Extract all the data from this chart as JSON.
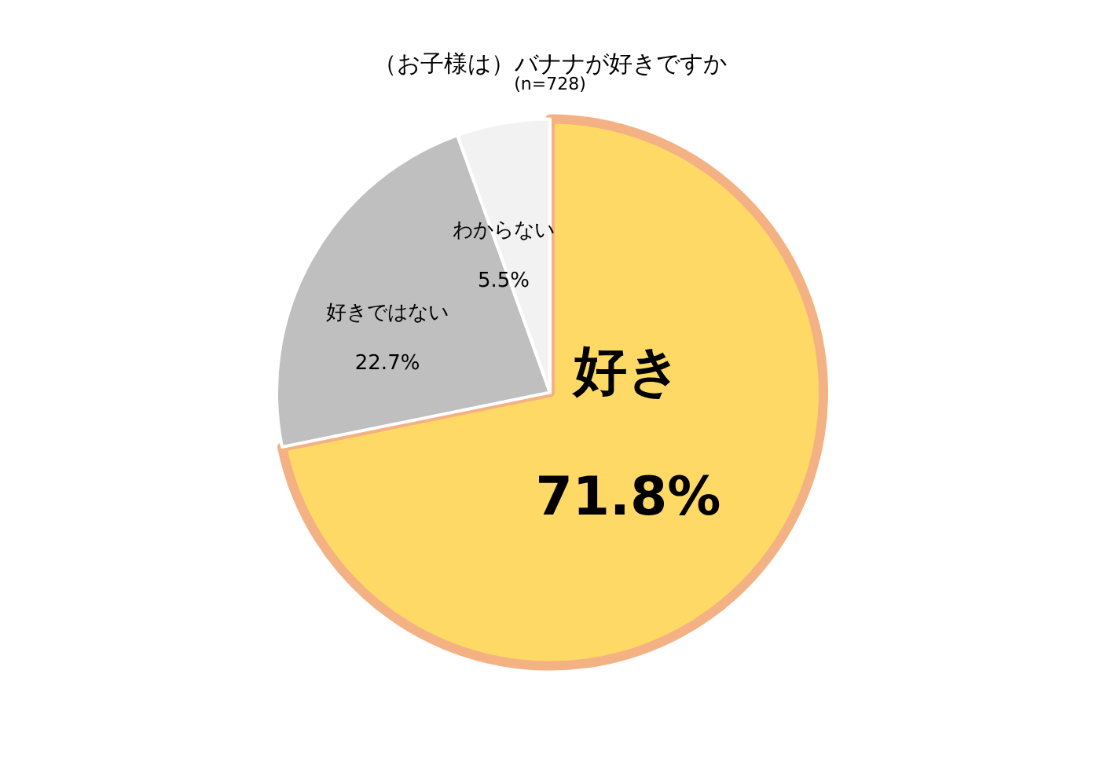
{
  "chart_data": {
    "type": "pie",
    "title": "（お子様は）バナナが好きですか",
    "subtitle": "(n=728)",
    "categories": [
      "好き",
      "好きではない",
      "わからない"
    ],
    "values": [
      71.8,
      22.7,
      5.5
    ],
    "colors": [
      "#ffd966",
      "#bfbfbf",
      "#f2f2f2"
    ],
    "value_labels": [
      "71.8%",
      "22.7%",
      "5.5%"
    ],
    "legend": false
  }
}
